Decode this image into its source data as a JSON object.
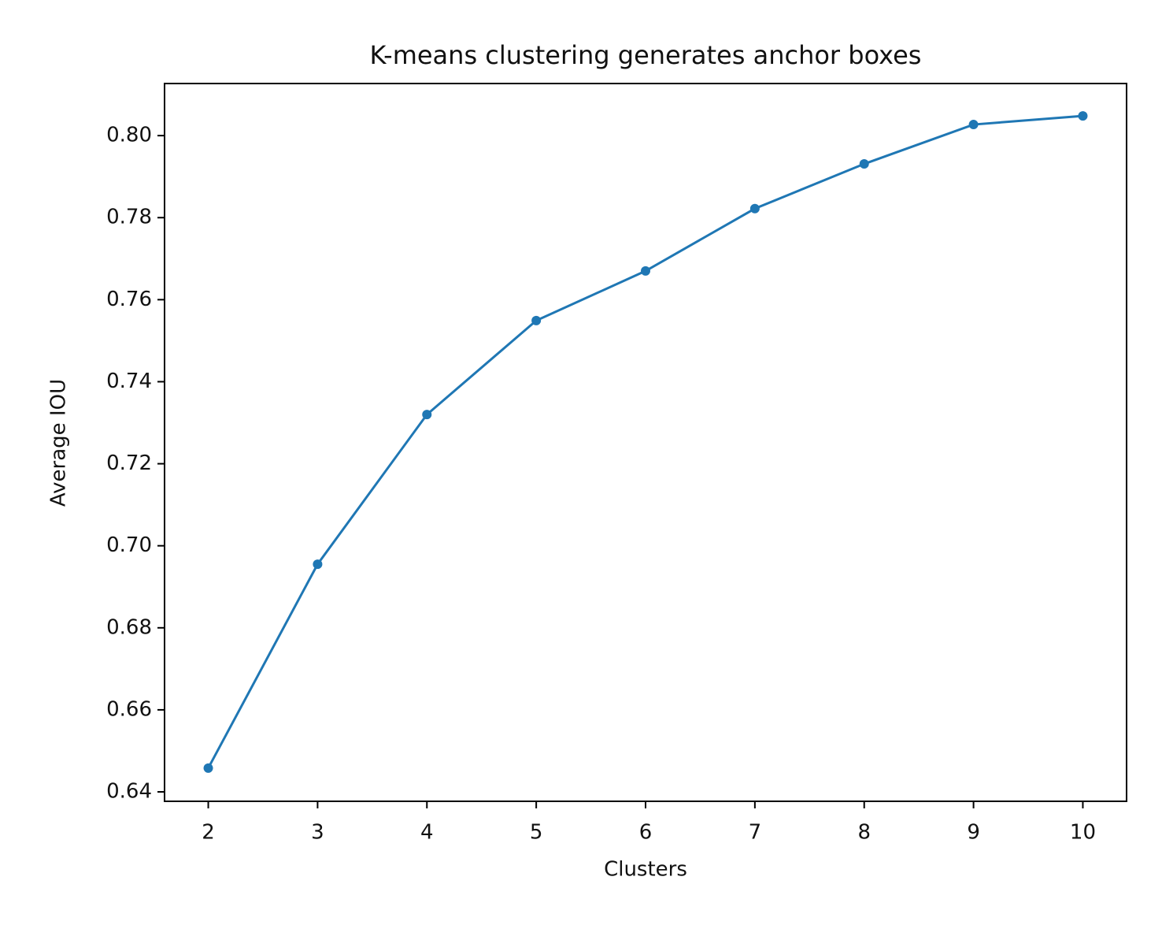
{
  "chart_data": {
    "type": "line",
    "title": "K-means clustering generates anchor boxes",
    "x_label": "Clusters",
    "y_label": "Average IOU",
    "x": [
      2,
      3,
      4,
      5,
      6,
      7,
      8,
      9,
      10
    ],
    "series": [
      {
        "color": "#1f77b4",
        "values": [
          0.6458,
          0.6955,
          0.732,
          0.7549,
          0.767,
          0.7822,
          0.7931,
          0.8027,
          0.8048
        ]
      }
    ],
    "xlim": [
      1.6,
      10.4
    ],
    "ylim": [
      0.6377,
      0.8127
    ],
    "xticks": [
      2,
      3,
      4,
      5,
      6,
      7,
      8,
      9,
      10
    ],
    "yticks": [
      0.64,
      0.66,
      0.68,
      {
        "value": 0.7,
        "label": "0.70"
      },
      0.72,
      0.74,
      0.76,
      0.78,
      {
        "value": 0.8,
        "label": "0.80"
      }
    ],
    "grid": false
  }
}
